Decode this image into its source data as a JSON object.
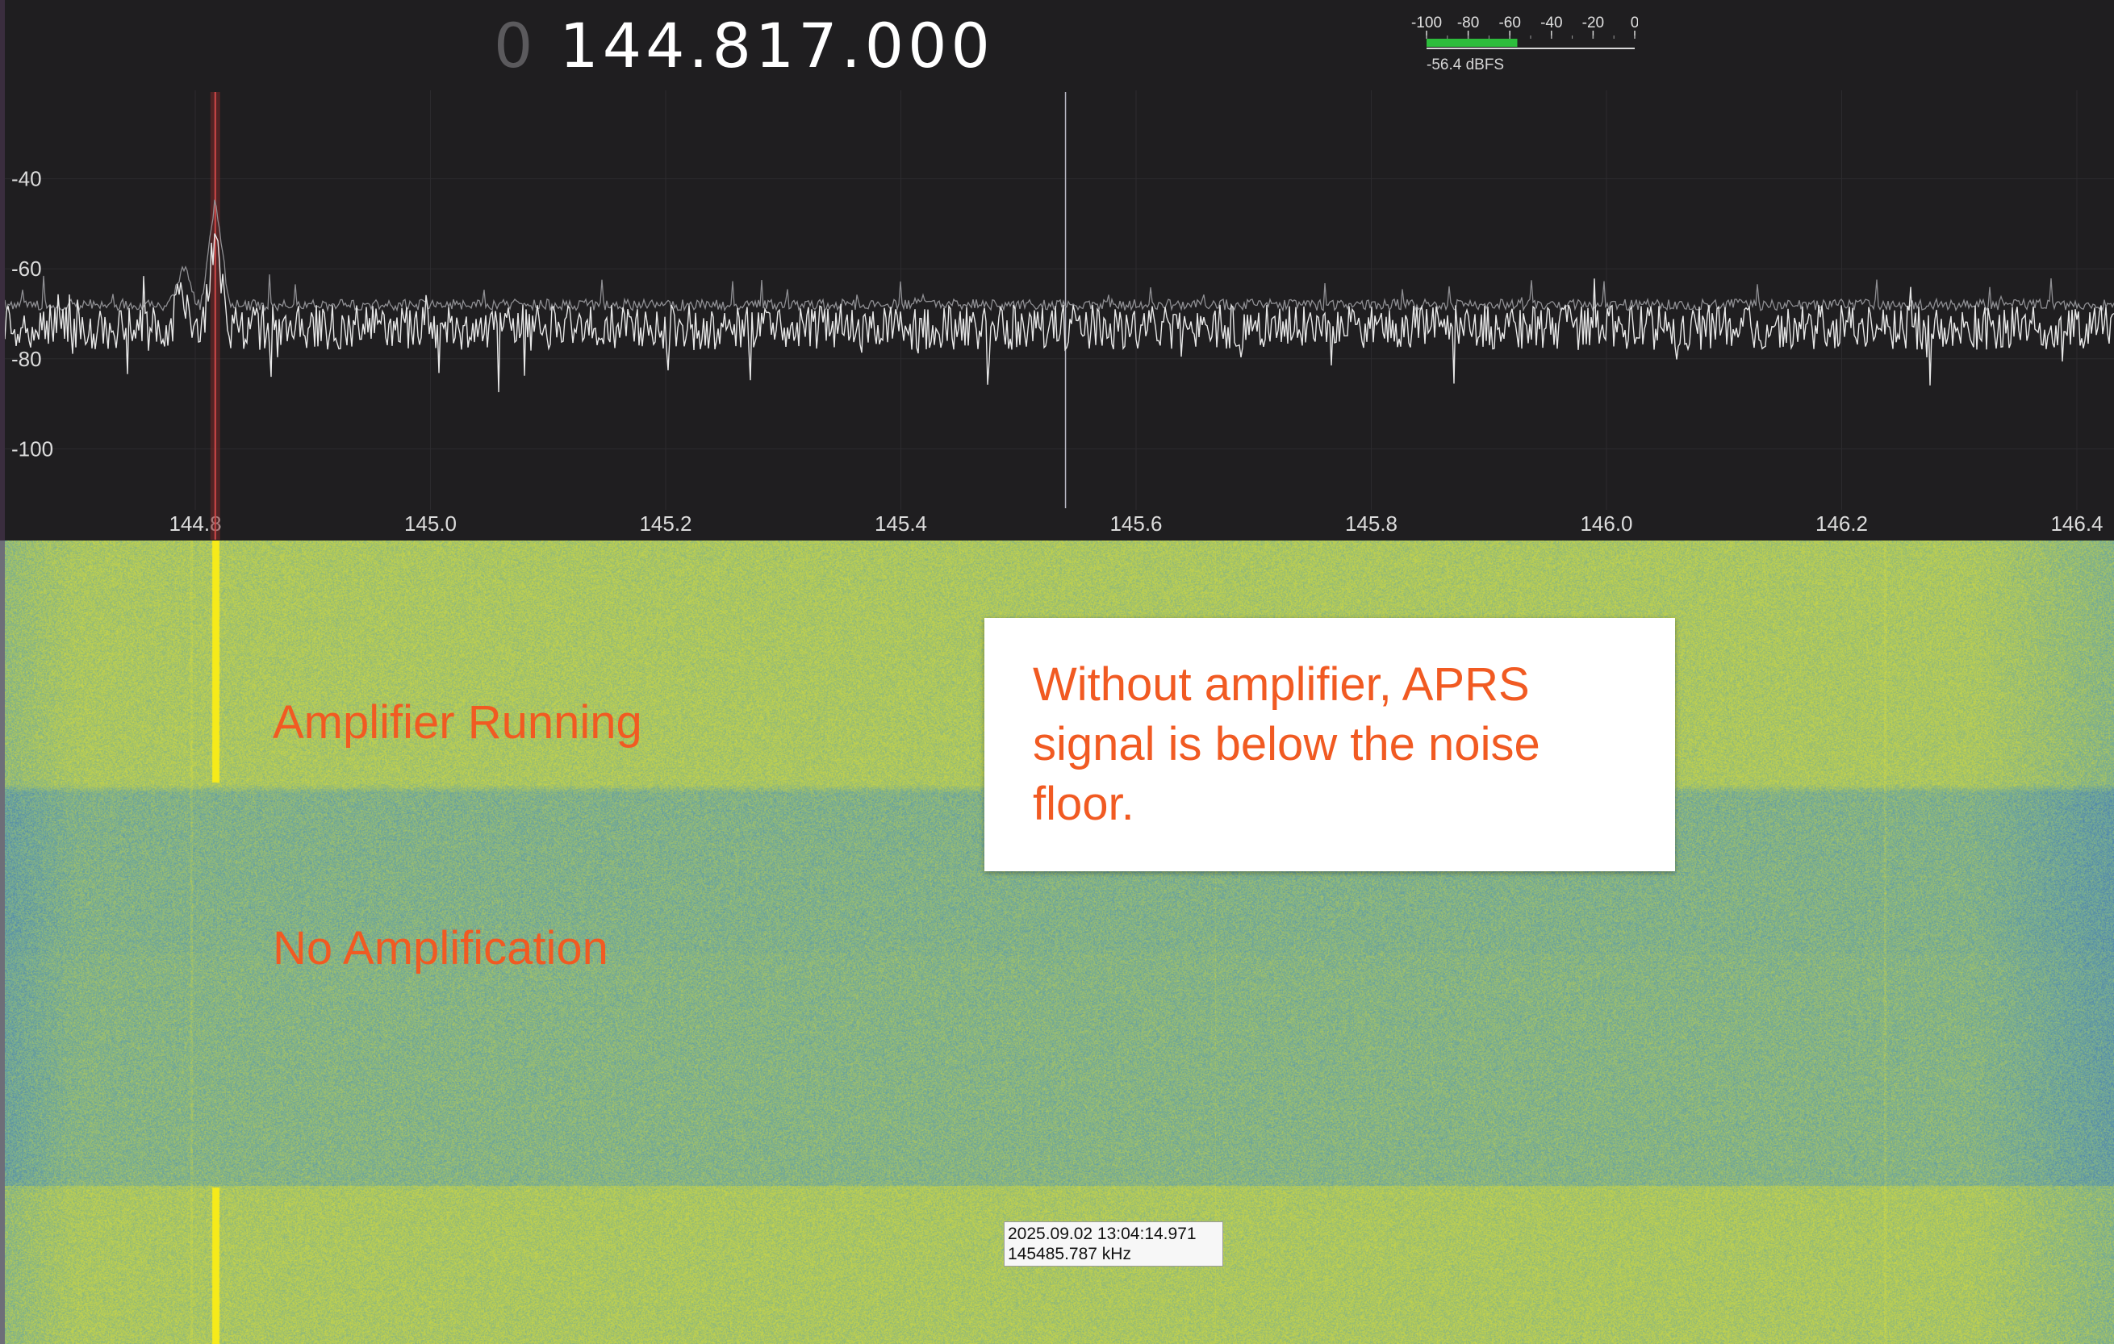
{
  "header": {
    "frequency_lead": "0",
    "frequency": "144.817.000"
  },
  "level_meter": {
    "scale_labels": [
      "-100",
      "-80",
      "-60",
      "-40",
      "-20",
      "0"
    ],
    "scale_min": -100,
    "scale_max": 0,
    "level_dbfs": -56.4,
    "readout": "-56.4 dBFS",
    "bar_color": "#2dbd3c"
  },
  "spectrum": {
    "y_tick_labels": [
      "-40",
      "-60",
      "-80",
      "-100"
    ],
    "y_ticks": [
      -40,
      -60,
      -80,
      -100
    ],
    "y_range": [
      -120,
      -20
    ],
    "x_tick_labels": [
      "144.8",
      "145.0",
      "145.2",
      "145.4",
      "145.6",
      "145.8",
      "146.0",
      "146.2",
      "146.4"
    ],
    "x_ticks": [
      144.8,
      145.0,
      145.2,
      145.4,
      145.6,
      145.8,
      146.0,
      146.2,
      146.4
    ],
    "x_range": [
      144.64,
      146.44
    ],
    "grid": true,
    "noise_floor_dbfs": -73,
    "peak_hold_dbfs": -68,
    "trace_color": "#e8e8e8",
    "tuned_marker_mhz": 144.817,
    "tuned_marker_color": "#d04848",
    "cursor_mhz": 145.54,
    "signals": [
      {
        "freq_mhz": 144.817,
        "peak_dbfs": -52
      },
      {
        "freq_mhz": 144.79,
        "peak_dbfs": -65
      }
    ]
  },
  "waterfall": {
    "palette": [
      "#3e72b8",
      "#6fa89a",
      "#b7cc55",
      "#dfe23a"
    ],
    "signal_color": "#f6ea1a",
    "signal_freq_mhz": 144.817
  },
  "annotations": {
    "amplifier_running": "Amplifier Running",
    "no_amplification": "No Amplification",
    "note": "Without amplifier, APRS signal is below the noise floor."
  },
  "tooltip": {
    "timestamp": "2025.09.02 13:04:14.971",
    "frequency": "145485.787 kHz"
  }
}
